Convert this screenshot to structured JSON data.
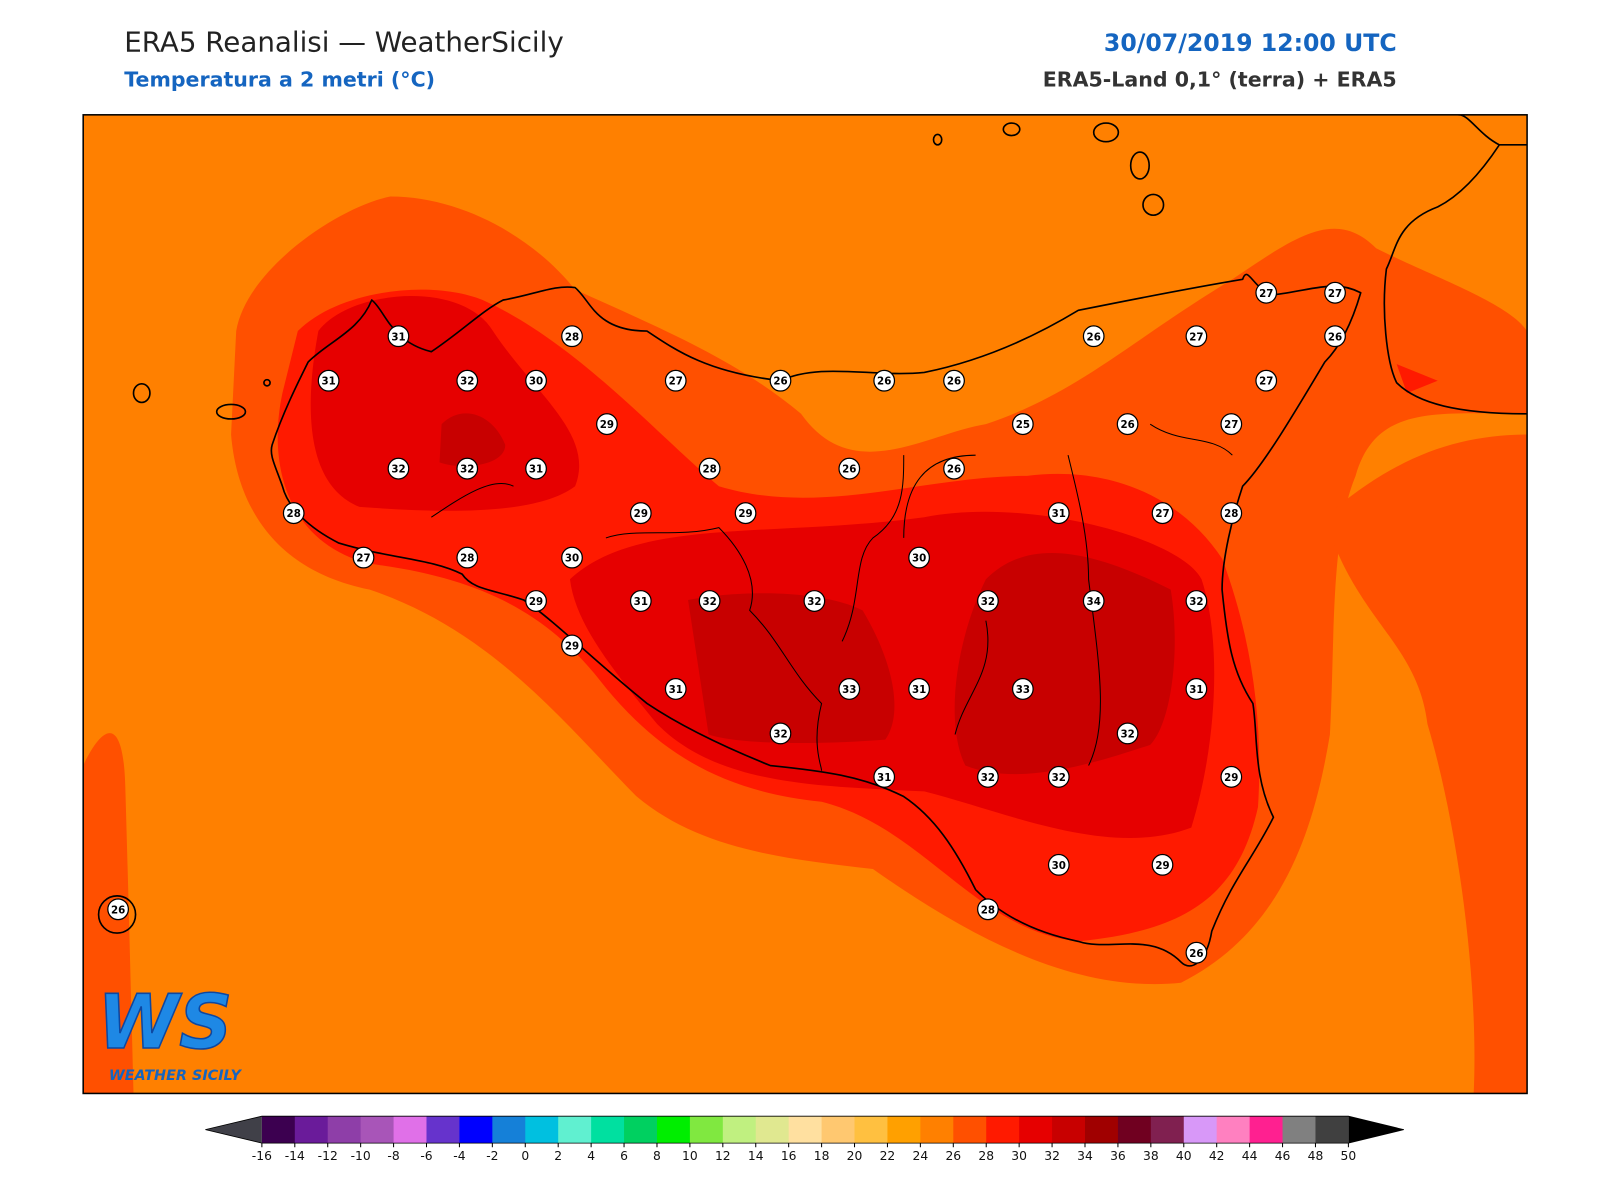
{
  "header": {
    "title": "ERA5 Reanalisi — WeatherSicily",
    "subtitle": "Temperatura a 2 metri (°C)",
    "datetime": "30/07/2019 12:00 UTC",
    "source": "ERA5-Land 0,1° (terra) + ERA5"
  },
  "stations": [
    31,
    28,
    31,
    32,
    30,
    27,
    26,
    26,
    26,
    26,
    27,
    27,
    27,
    26,
    27,
    29,
    25,
    26,
    27,
    32,
    32,
    31,
    28,
    26,
    26,
    28,
    29,
    29,
    31,
    27,
    28,
    27,
    28,
    30,
    30,
    29,
    31,
    32,
    32,
    32,
    34,
    32,
    29,
    31,
    33,
    31,
    33,
    31,
    32,
    32,
    31,
    32,
    32,
    29,
    30,
    29,
    28,
    26,
    26
  ],
  "colorbar": {
    "ticks": [
      -16,
      -14,
      -12,
      -10,
      -8,
      -6,
      -4,
      -2,
      0,
      2,
      4,
      6,
      8,
      10,
      12,
      14,
      16,
      18,
      20,
      22,
      24,
      26,
      28,
      30,
      32,
      34,
      36,
      38,
      40,
      42,
      44,
      46,
      48,
      50
    ],
    "colors": [
      "#3c0050",
      "#6a1b9a",
      "#8e3ea8",
      "#a855b8",
      "#e070e8",
      "#6633cc",
      "#0000ff",
      "#1580d8",
      "#00c0e0",
      "#60f0d0",
      "#00e0a0",
      "#00d060",
      "#00ee00",
      "#80e840",
      "#c0f080",
      "#e0e890",
      "#ffe0a0",
      "#ffc870",
      "#ffc040",
      "#ffa000",
      "#ff8000",
      "#ff5000",
      "#ff1a00",
      "#e60000",
      "#c80000",
      "#a00000",
      "#700020",
      "#802050",
      "#d898f8",
      "#ff80c0",
      "#ff2090",
      "#808080",
      "#404040"
    ],
    "under_color": "#404048",
    "over_color": "#000000"
  },
  "logo": {
    "mark": "WS",
    "name": "WEATHER SICILY"
  }
}
